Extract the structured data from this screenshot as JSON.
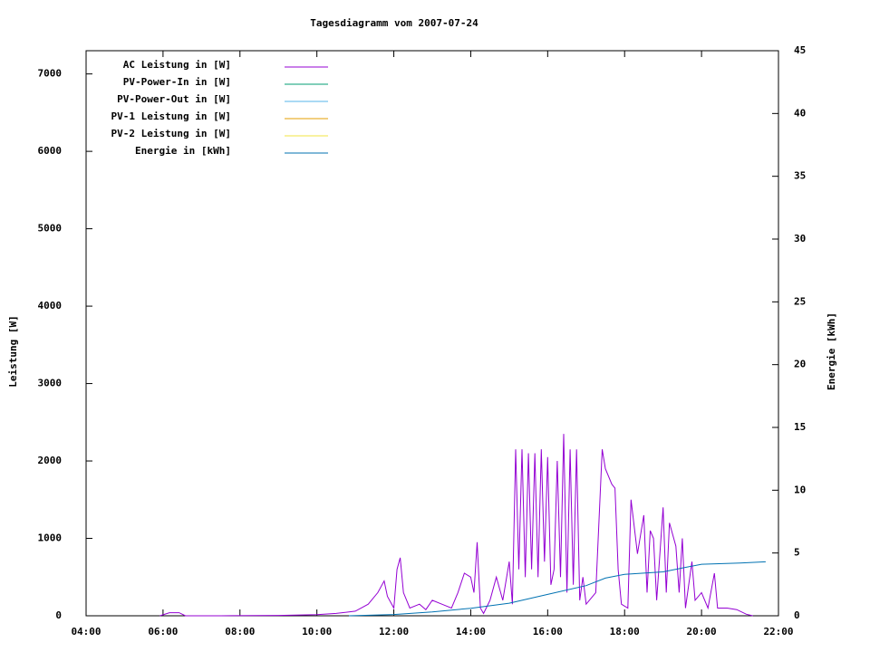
{
  "chart_data": {
    "type": "line",
    "title": "Tagesdiagramm vom 2007-07-24",
    "ylabel": "Leistung [W]",
    "y2label": "Energie [kWh]",
    "xlim": [
      "04:00",
      "22:00"
    ],
    "xticks": [
      "04:00",
      "06:00",
      "08:00",
      "10:00",
      "12:00",
      "14:00",
      "16:00",
      "18:00",
      "20:00",
      "22:00"
    ],
    "ylim": [
      0,
      7300
    ],
    "yticks": [
      0,
      1000,
      2000,
      3000,
      4000,
      5000,
      6000,
      7000
    ],
    "y2lim": [
      0,
      45
    ],
    "y2ticks": [
      0,
      5,
      10,
      15,
      20,
      25,
      30,
      35,
      40,
      45
    ],
    "legend": "top-left",
    "series": [
      {
        "name": "AC Leistung in [W]",
        "color": "#9400d3",
        "x": [
          "05:55",
          "06:10",
          "06:25",
          "06:35",
          "07:30",
          "09:00",
          "10:00",
          "10:30",
          "11:00",
          "11:20",
          "11:35",
          "11:45",
          "11:50",
          "12:00",
          "12:05",
          "12:10",
          "12:15",
          "12:25",
          "12:40",
          "12:50",
          "13:00",
          "13:15",
          "13:30",
          "13:40",
          "13:50",
          "14:00",
          "14:05",
          "14:10",
          "14:15",
          "14:20",
          "14:30",
          "14:40",
          "14:50",
          "15:00",
          "15:05",
          "15:10",
          "15:15",
          "15:20",
          "15:25",
          "15:30",
          "15:35",
          "15:40",
          "15:45",
          "15:50",
          "15:55",
          "16:00",
          "16:05",
          "16:10",
          "16:15",
          "16:20",
          "16:25",
          "16:30",
          "16:35",
          "16:40",
          "16:45",
          "16:50",
          "16:55",
          "17:00",
          "17:15",
          "17:25",
          "17:30",
          "17:40",
          "17:45",
          "17:50",
          "17:55",
          "18:05",
          "18:10",
          "18:20",
          "18:30",
          "18:35",
          "18:40",
          "18:45",
          "18:50",
          "19:00",
          "19:05",
          "19:10",
          "19:20",
          "19:25",
          "19:30",
          "19:35",
          "19:45",
          "19:50",
          "20:00",
          "20:10",
          "20:20",
          "20:25",
          "20:40",
          "20:55",
          "21:10",
          "21:20"
        ],
        "values": [
          0,
          40,
          40,
          0,
          0,
          5,
          15,
          30,
          60,
          150,
          300,
          450,
          250,
          100,
          600,
          750,
          300,
          100,
          150,
          80,
          200,
          150,
          100,
          300,
          550,
          500,
          300,
          950,
          100,
          30,
          200,
          500,
          200,
          700,
          150,
          2150,
          600,
          2150,
          500,
          2100,
          600,
          2100,
          500,
          2150,
          700,
          2050,
          400,
          600,
          2000,
          500,
          2350,
          300,
          2150,
          400,
          2150,
          200,
          500,
          150,
          300,
          2150,
          1900,
          1700,
          1650,
          600,
          150,
          100,
          1500,
          800,
          1300,
          300,
          1100,
          1000,
          200,
          1400,
          300,
          1200,
          900,
          300,
          1000,
          100,
          700,
          200,
          300,
          100,
          550,
          100,
          100,
          80,
          20,
          0
        ]
      },
      {
        "name": "PV-Power-In in [W]",
        "color": "#009e73",
        "x": [],
        "values": []
      },
      {
        "name": "PV-Power-Out in [W]",
        "color": "#56b4e9",
        "x": [],
        "values": []
      },
      {
        "name": "PV-1 Leistung in [W]",
        "color": "#e69f00",
        "x": [],
        "values": []
      },
      {
        "name": "PV-2 Leistung in [W]",
        "color": "#f0e442",
        "x": [],
        "values": []
      },
      {
        "name": "Energie in [kWh]",
        "color": "#0072b2",
        "axis": "y2",
        "x": [
          "10:50",
          "12:00",
          "13:00",
          "14:00",
          "15:00",
          "16:00",
          "17:00",
          "17:30",
          "18:00",
          "19:00",
          "19:30",
          "20:00",
          "21:00",
          "21:40"
        ],
        "values": [
          0,
          0.1,
          0.3,
          0.6,
          1,
          1.7,
          2.4,
          3,
          3.3,
          3.5,
          3.8,
          4.1,
          4.2,
          4.3
        ]
      }
    ]
  }
}
